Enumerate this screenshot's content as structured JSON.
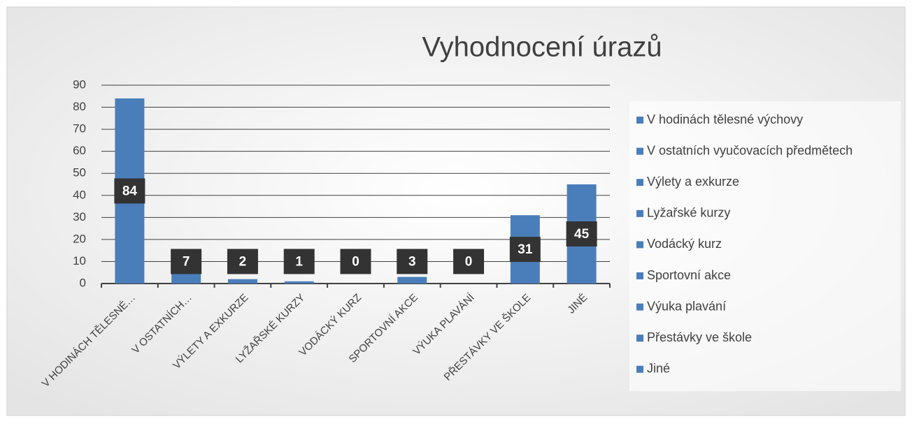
{
  "chart_data": {
    "type": "bar",
    "title": "Vyhodnocení úrazů",
    "categories": [
      "V HODINÁCH TĚLESNÉ…",
      "V OSTATNÍCH…",
      "VÝLETY A EXKURZE",
      "LYŽAŘSKÉ KURZY",
      "VODÁCKÝ KURZ",
      "SPORTOVNÍ AKCE",
      "VÝUKA PLAVÁNÍ",
      "PŘESTÁVKY VE ŠKOLE",
      "JINÉ"
    ],
    "values": [
      84,
      7,
      2,
      1,
      0,
      3,
      0,
      31,
      45
    ],
    "color": "#4a7ebb",
    "legend": [
      "V hodinách tělesné výchovy",
      "V ostatních vyučovacích předmětech",
      "Výlety a exkurze",
      "Lyžařské kurzy",
      "Vodácký kurz",
      "Sportovní akce",
      "Výuka plavání",
      "Přestávky ve škole",
      "Jiné"
    ],
    "ylim": [
      0,
      90
    ],
    "yticks": [
      0,
      10,
      20,
      30,
      40,
      50,
      60,
      70,
      80,
      90
    ],
    "grid": true
  }
}
